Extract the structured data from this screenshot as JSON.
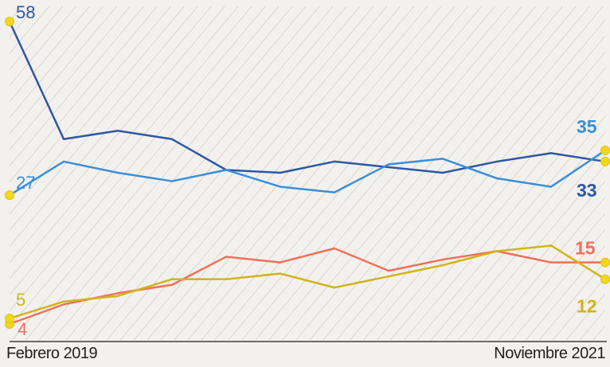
{
  "chart_data": {
    "type": "line",
    "x_start_label": "Febrero 2019",
    "x_end_label": "Noviembre 2021",
    "ylim": [
      0,
      60
    ],
    "series": [
      {
        "values": [
          58,
          37,
          38.5,
          37,
          31.5,
          31,
          33,
          32,
          31,
          33,
          34.5,
          33
        ],
        "color": "#2c58a5",
        "start_label": "58",
        "end_label": "33",
        "end_bold": true
      },
      {
        "values": [
          27,
          33,
          31,
          29.5,
          31.5,
          28.5,
          27.5,
          32.5,
          33.5,
          30,
          28.5,
          35
        ],
        "color": "#3a8fd8",
        "start_label": "27",
        "end_label": "35",
        "end_bold": true
      },
      {
        "values": [
          4,
          7.5,
          9.5,
          11,
          16,
          15,
          17.5,
          13.5,
          15.5,
          17,
          15,
          15
        ],
        "color": "#f0705a",
        "start_label": "4",
        "end_label": "15",
        "end_bold": true
      },
      {
        "values": [
          5,
          8,
          9,
          12,
          12,
          13,
          10.5,
          12.5,
          14.5,
          17,
          18,
          12
        ],
        "color": "#d1b41b",
        "start_label": "5",
        "end_label": "12",
        "end_bold": true
      }
    ],
    "marker_color": "#f2d81a",
    "hatch_background": true
  }
}
